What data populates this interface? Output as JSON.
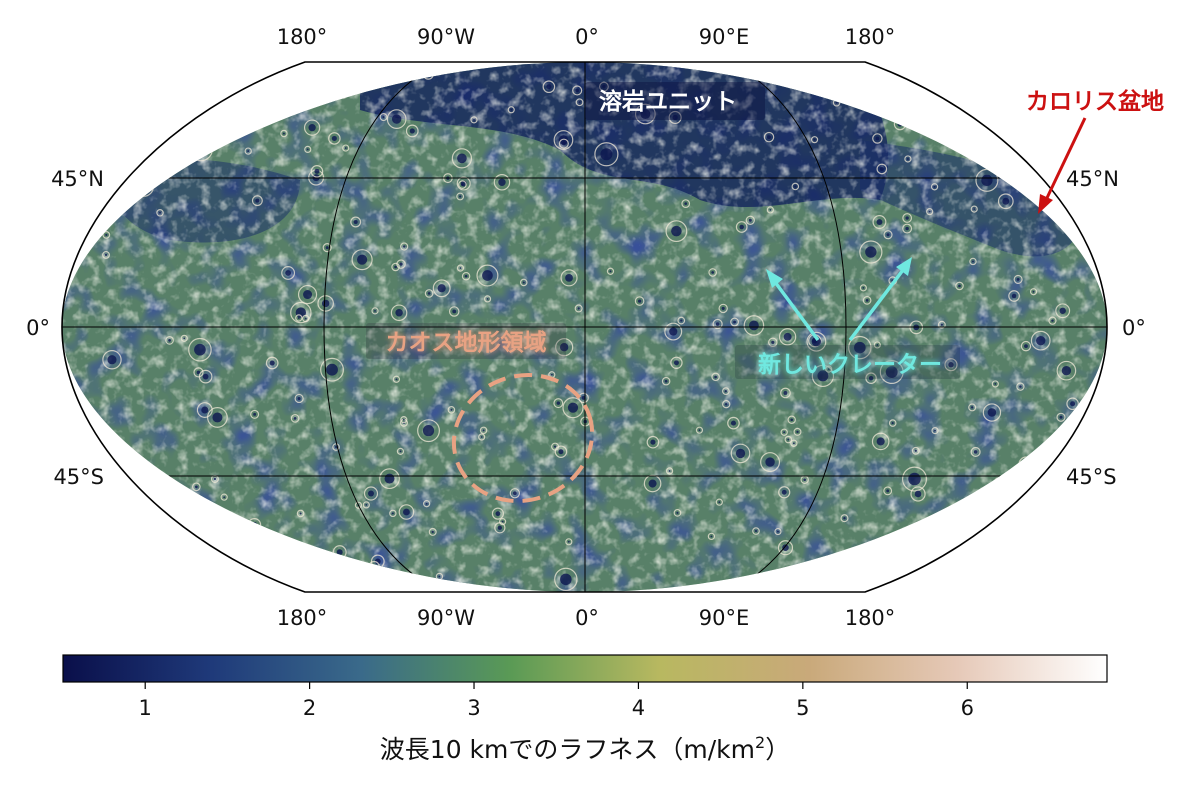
{
  "map": {
    "projection": "Robinson (global)",
    "longitude_labels_top": [
      "180°",
      "90°W",
      "0°",
      "90°E",
      "180°"
    ],
    "longitude_labels_bottom": [
      "180°",
      "90°W",
      "0°",
      "90°E",
      "180°"
    ],
    "latitude_labels_left": [
      "45°N",
      "0°",
      "45°S"
    ],
    "latitude_labels_right": [
      "45°N",
      "0°",
      "45°S"
    ],
    "meridians": [
      -180,
      -90,
      0,
      90,
      180
    ],
    "parallels": [
      45,
      0,
      -45
    ]
  },
  "annotations": {
    "lava_unit": {
      "text": "溶岩ユニット",
      "lon": 0,
      "lat": 63,
      "color": "#ffffff"
    },
    "caloris": {
      "text": "カロリス盆地",
      "color": "#cc1111",
      "target_lon": 165,
      "target_lat": 32
    },
    "chaos": {
      "text": "カオス地形領域",
      "color": "#e8a283",
      "region_lon": -30,
      "region_lat": -30
    },
    "young_craters": {
      "text": "新しいクレーター",
      "color": "#6fe8e0",
      "targets": [
        {
          "lon": 62,
          "lat": 15
        },
        {
          "lon": 110,
          "lat": 22
        }
      ]
    }
  },
  "colorbar": {
    "ticks": [
      "1",
      "2",
      "3",
      "4",
      "5",
      "6"
    ],
    "tick_values": [
      1,
      2,
      3,
      4,
      5,
      6
    ],
    "vmin": 0.5,
    "vmax": 6.85,
    "title_prefix": "波長10 kmでのラフネス（m/km",
    "title_superscript": "2",
    "title_suffix": "）",
    "colors": [
      "#0a0f4a",
      "#1f3a7a",
      "#3a6a8a",
      "#5a9a55",
      "#b8b860",
      "#c9a97a",
      "#e6c9b8",
      "#ffffff"
    ]
  }
}
